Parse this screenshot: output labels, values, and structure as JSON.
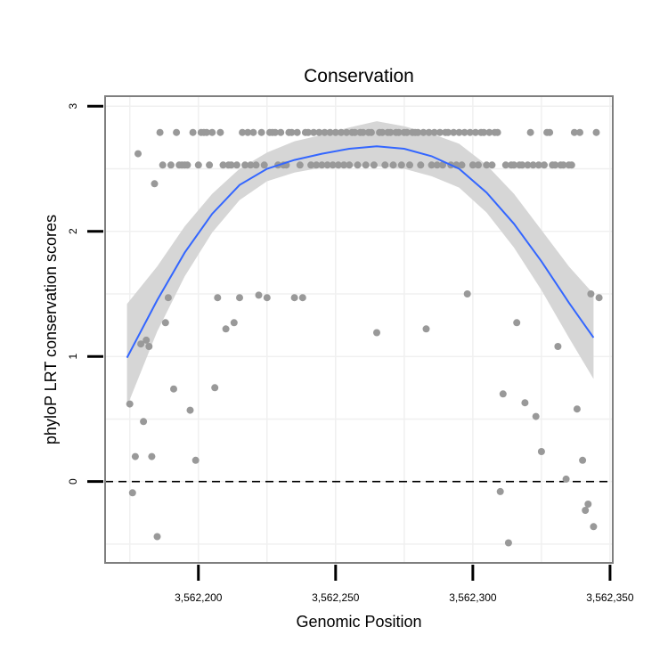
{
  "chart_data": {
    "type": "scatter",
    "title": "Conservation",
    "xlabel": "Genomic Position",
    "ylabel": "phyloP LRT conservation scores",
    "xlim": [
      3562166,
      3562351
    ],
    "ylim": [
      -0.65,
      3.08
    ],
    "x_ticks": [
      {
        "value": 3562200,
        "label": "3,562,200"
      },
      {
        "value": 3562250,
        "label": "3,562,250"
      },
      {
        "value": 3562300,
        "label": "3,562,300"
      },
      {
        "value": 3562350,
        "label": "3,562,350"
      }
    ],
    "y_ticks": [
      {
        "value": 0,
        "label": "0"
      },
      {
        "value": 1,
        "label": "1"
      },
      {
        "value": 2,
        "label": "2"
      },
      {
        "value": 3,
        "label": "3"
      }
    ],
    "grid": true,
    "reference_line": {
      "y": 0,
      "style": "dashed"
    },
    "colors": {
      "points": "#999999",
      "smooth_line": "#3366ff",
      "confidence_band": "#d6d6d6",
      "panel_border": "#7f7f7f",
      "grid": "#f0f0f0"
    },
    "series": [
      {
        "points": [
          [
            3562175,
            0.62
          ],
          [
            3562176,
            -0.09
          ],
          [
            3562177,
            0.2
          ],
          [
            3562178,
            2.62
          ],
          [
            3562179,
            1.1
          ],
          [
            3562180,
            0.48
          ],
          [
            3562181,
            1.13
          ],
          [
            3562182,
            1.08
          ],
          [
            3562183,
            0.2
          ],
          [
            3562184,
            2.38
          ],
          [
            3562185,
            -0.44
          ],
          [
            3562186,
            2.79
          ],
          [
            3562187,
            2.53
          ],
          [
            3562188,
            1.27
          ],
          [
            3562189,
            1.47
          ],
          [
            3562190,
            2.53
          ],
          [
            3562191,
            0.74
          ],
          [
            3562192,
            2.79
          ],
          [
            3562193,
            2.53
          ],
          [
            3562194,
            2.53
          ],
          [
            3562195,
            2.53
          ],
          [
            3562196,
            2.53
          ],
          [
            3562197,
            0.57
          ],
          [
            3562198,
            2.79
          ],
          [
            3562199,
            0.17
          ],
          [
            3562200,
            2.53
          ],
          [
            3562201,
            2.79
          ],
          [
            3562202,
            2.79
          ],
          [
            3562203,
            2.79
          ],
          [
            3562204,
            2.53
          ],
          [
            3562205,
            2.79
          ],
          [
            3562206,
            0.75
          ],
          [
            3562207,
            1.47
          ],
          [
            3562208,
            2.79
          ],
          [
            3562209,
            2.53
          ],
          [
            3562210,
            1.22
          ],
          [
            3562211,
            2.53
          ],
          [
            3562212,
            2.53
          ],
          [
            3562213,
            1.27
          ],
          [
            3562214,
            2.53
          ],
          [
            3562215,
            1.47
          ],
          [
            3562216,
            2.79
          ],
          [
            3562217,
            2.53
          ],
          [
            3562218,
            2.79
          ],
          [
            3562219,
            2.53
          ],
          [
            3562220,
            2.79
          ],
          [
            3562221,
            2.53
          ],
          [
            3562222,
            1.49
          ],
          [
            3562223,
            2.79
          ],
          [
            3562224,
            2.53
          ],
          [
            3562225,
            1.47
          ],
          [
            3562226,
            2.79
          ],
          [
            3562227,
            2.79
          ],
          [
            3562228,
            2.79
          ],
          [
            3562229,
            2.53
          ],
          [
            3562230,
            2.79
          ],
          [
            3562231,
            2.53
          ],
          [
            3562232,
            2.53
          ],
          [
            3562233,
            2.79
          ],
          [
            3562234,
            2.79
          ],
          [
            3562235,
            1.47
          ],
          [
            3562236,
            2.79
          ],
          [
            3562237,
            2.53
          ],
          [
            3562238,
            1.47
          ],
          [
            3562239,
            2.79
          ],
          [
            3562240,
            2.79
          ],
          [
            3562241,
            2.53
          ],
          [
            3562242,
            2.79
          ],
          [
            3562243,
            2.53
          ],
          [
            3562244,
            2.79
          ],
          [
            3562245,
            2.53
          ],
          [
            3562246,
            2.79
          ],
          [
            3562247,
            2.53
          ],
          [
            3562248,
            2.79
          ],
          [
            3562249,
            2.53
          ],
          [
            3562250,
            2.79
          ],
          [
            3562251,
            2.53
          ],
          [
            3562252,
            2.79
          ],
          [
            3562253,
            2.53
          ],
          [
            3562254,
            2.79
          ],
          [
            3562255,
            2.53
          ],
          [
            3562256,
            2.79
          ],
          [
            3562257,
            2.79
          ],
          [
            3562258,
            2.53
          ],
          [
            3562259,
            2.79
          ],
          [
            3562260,
            2.79
          ],
          [
            3562261,
            2.53
          ],
          [
            3562262,
            2.79
          ],
          [
            3562263,
            2.79
          ],
          [
            3562264,
            2.53
          ],
          [
            3562265,
            1.19
          ],
          [
            3562266,
            2.79
          ],
          [
            3562267,
            2.79
          ],
          [
            3562268,
            2.53
          ],
          [
            3562269,
            2.79
          ],
          [
            3562270,
            2.79
          ],
          [
            3562271,
            2.53
          ],
          [
            3562272,
            2.79
          ],
          [
            3562273,
            2.79
          ],
          [
            3562274,
            2.53
          ],
          [
            3562275,
            2.79
          ],
          [
            3562276,
            2.79
          ],
          [
            3562277,
            2.53
          ],
          [
            3562278,
            2.79
          ],
          [
            3562279,
            2.79
          ],
          [
            3562280,
            2.79
          ],
          [
            3562281,
            2.53
          ],
          [
            3562282,
            2.79
          ],
          [
            3562283,
            1.22
          ],
          [
            3562284,
            2.79
          ],
          [
            3562285,
            2.53
          ],
          [
            3562286,
            2.79
          ],
          [
            3562287,
            2.53
          ],
          [
            3562288,
            2.79
          ],
          [
            3562289,
            2.53
          ],
          [
            3562290,
            2.79
          ],
          [
            3562291,
            2.79
          ],
          [
            3562292,
            2.53
          ],
          [
            3562293,
            2.79
          ],
          [
            3562294,
            2.53
          ],
          [
            3562295,
            2.79
          ],
          [
            3562296,
            2.53
          ],
          [
            3562297,
            2.79
          ],
          [
            3562298,
            1.5
          ],
          [
            3562299,
            2.79
          ],
          [
            3562300,
            2.53
          ],
          [
            3562301,
            2.79
          ],
          [
            3562302,
            2.53
          ],
          [
            3562303,
            2.79
          ],
          [
            3562304,
            2.79
          ],
          [
            3562305,
            2.53
          ],
          [
            3562306,
            2.79
          ],
          [
            3562307,
            2.53
          ],
          [
            3562308,
            2.79
          ],
          [
            3562309,
            2.79
          ],
          [
            3562310,
            -0.08
          ],
          [
            3562311,
            0.7
          ],
          [
            3562312,
            2.53
          ],
          [
            3562313,
            -0.49
          ],
          [
            3562314,
            2.53
          ],
          [
            3562315,
            2.53
          ],
          [
            3562316,
            1.27
          ],
          [
            3562317,
            2.53
          ],
          [
            3562318,
            2.53
          ],
          [
            3562319,
            0.63
          ],
          [
            3562320,
            2.53
          ],
          [
            3562321,
            2.79
          ],
          [
            3562322,
            2.53
          ],
          [
            3562323,
            0.52
          ],
          [
            3562324,
            2.53
          ],
          [
            3562325,
            0.24
          ],
          [
            3562326,
            2.53
          ],
          [
            3562327,
            2.79
          ],
          [
            3562328,
            2.79
          ],
          [
            3562329,
            2.53
          ],
          [
            3562330,
            2.53
          ],
          [
            3562331,
            1.08
          ],
          [
            3562332,
            2.53
          ],
          [
            3562333,
            2.53
          ],
          [
            3562334,
            0.02
          ],
          [
            3562335,
            2.53
          ],
          [
            3562336,
            2.53
          ],
          [
            3562337,
            2.79
          ],
          [
            3562338,
            0.58
          ],
          [
            3562339,
            2.79
          ],
          [
            3562340,
            0.17
          ],
          [
            3562341,
            -0.23
          ],
          [
            3562342,
            -0.18
          ],
          [
            3562343,
            1.5
          ],
          [
            3562344,
            -0.36
          ],
          [
            3562345,
            2.79
          ],
          [
            3562346,
            1.47
          ]
        ]
      }
    ],
    "smooth": {
      "method": "loess",
      "x": [
        3562174,
        3562185,
        3562195,
        3562205,
        3562215,
        3562225,
        3562235,
        3562245,
        3562255,
        3562265,
        3562275,
        3562285,
        3562295,
        3562305,
        3562315,
        3562325,
        3562335,
        3562344
      ],
      "y": [
        0.99,
        1.45,
        1.83,
        2.14,
        2.37,
        2.5,
        2.57,
        2.62,
        2.66,
        2.68,
        2.66,
        2.6,
        2.5,
        2.31,
        2.06,
        1.76,
        1.43,
        1.15
      ],
      "lower": [
        0.6,
        1.2,
        1.64,
        1.99,
        2.25,
        2.4,
        2.47,
        2.51,
        2.52,
        2.52,
        2.5,
        2.44,
        2.35,
        2.15,
        1.87,
        1.53,
        1.15,
        0.82
      ],
      "upper": [
        1.42,
        1.72,
        2.04,
        2.3,
        2.5,
        2.63,
        2.72,
        2.77,
        2.83,
        2.88,
        2.84,
        2.78,
        2.7,
        2.53,
        2.3,
        2.01,
        1.72,
        1.5
      ]
    }
  }
}
